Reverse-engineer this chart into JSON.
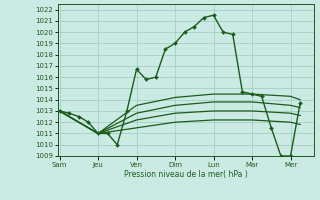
{
  "background_color": "#cceae4",
  "grid_color": "#99ccbb",
  "line_color": "#1a5c1a",
  "xlabel": "Pression niveau de la mer( hPa )",
  "ylim": [
    1009,
    1022.5
  ],
  "yticks": [
    1009,
    1010,
    1011,
    1012,
    1013,
    1014,
    1015,
    1016,
    1017,
    1018,
    1019,
    1020,
    1021,
    1022
  ],
  "xlim": [
    -0.1,
    13.2
  ],
  "x_labels": [
    "Sam",
    "Jeu",
    "Ven",
    "Dim",
    "Lun",
    "Mar",
    "Mer"
  ],
  "x_positions": [
    0,
    2,
    4,
    6,
    8,
    10,
    12
  ],
  "lines": [
    {
      "x": [
        0,
        0.5,
        1,
        1.5,
        2,
        2.5,
        3,
        3.5,
        4,
        4.5,
        5,
        5.5,
        6,
        6.5,
        7,
        7.5,
        8,
        8.5,
        9,
        9.5,
        10,
        10.5,
        11,
        11.5,
        12,
        12.5
      ],
      "y": [
        1013,
        1012.8,
        1012.5,
        1012,
        1011,
        1011,
        1010,
        1013,
        1016.7,
        1015.8,
        1016,
        1018.5,
        1019,
        1020,
        1020.5,
        1021.3,
        1021.5,
        1020,
        1019.8,
        1014.7,
        1014.5,
        1014.3,
        1011.5,
        1009,
        1009,
        1013.7
      ],
      "has_markers": true,
      "linewidth": 1.0,
      "markersize": 2.0
    },
    {
      "x": [
        0,
        2,
        4,
        6,
        8,
        10,
        12,
        12.5
      ],
      "y": [
        1013,
        1011,
        1013.5,
        1014.2,
        1014.5,
        1014.5,
        1014.3,
        1014.0
      ],
      "has_markers": false,
      "linewidth": 0.9
    },
    {
      "x": [
        0,
        2,
        4,
        6,
        8,
        10,
        12,
        12.5
      ],
      "y": [
        1013,
        1011,
        1012.8,
        1013.5,
        1013.8,
        1013.8,
        1013.5,
        1013.3
      ],
      "has_markers": false,
      "linewidth": 0.9
    },
    {
      "x": [
        0,
        2,
        4,
        6,
        8,
        10,
        12,
        12.5
      ],
      "y": [
        1013,
        1011,
        1012.2,
        1012.8,
        1013.0,
        1013.0,
        1012.8,
        1012.6
      ],
      "has_markers": false,
      "linewidth": 0.9
    },
    {
      "x": [
        0,
        2,
        4,
        6,
        8,
        10,
        12,
        12.5
      ],
      "y": [
        1013,
        1011,
        1011.5,
        1012.0,
        1012.2,
        1012.2,
        1012.0,
        1011.8
      ],
      "has_markers": false,
      "linewidth": 0.9
    }
  ]
}
